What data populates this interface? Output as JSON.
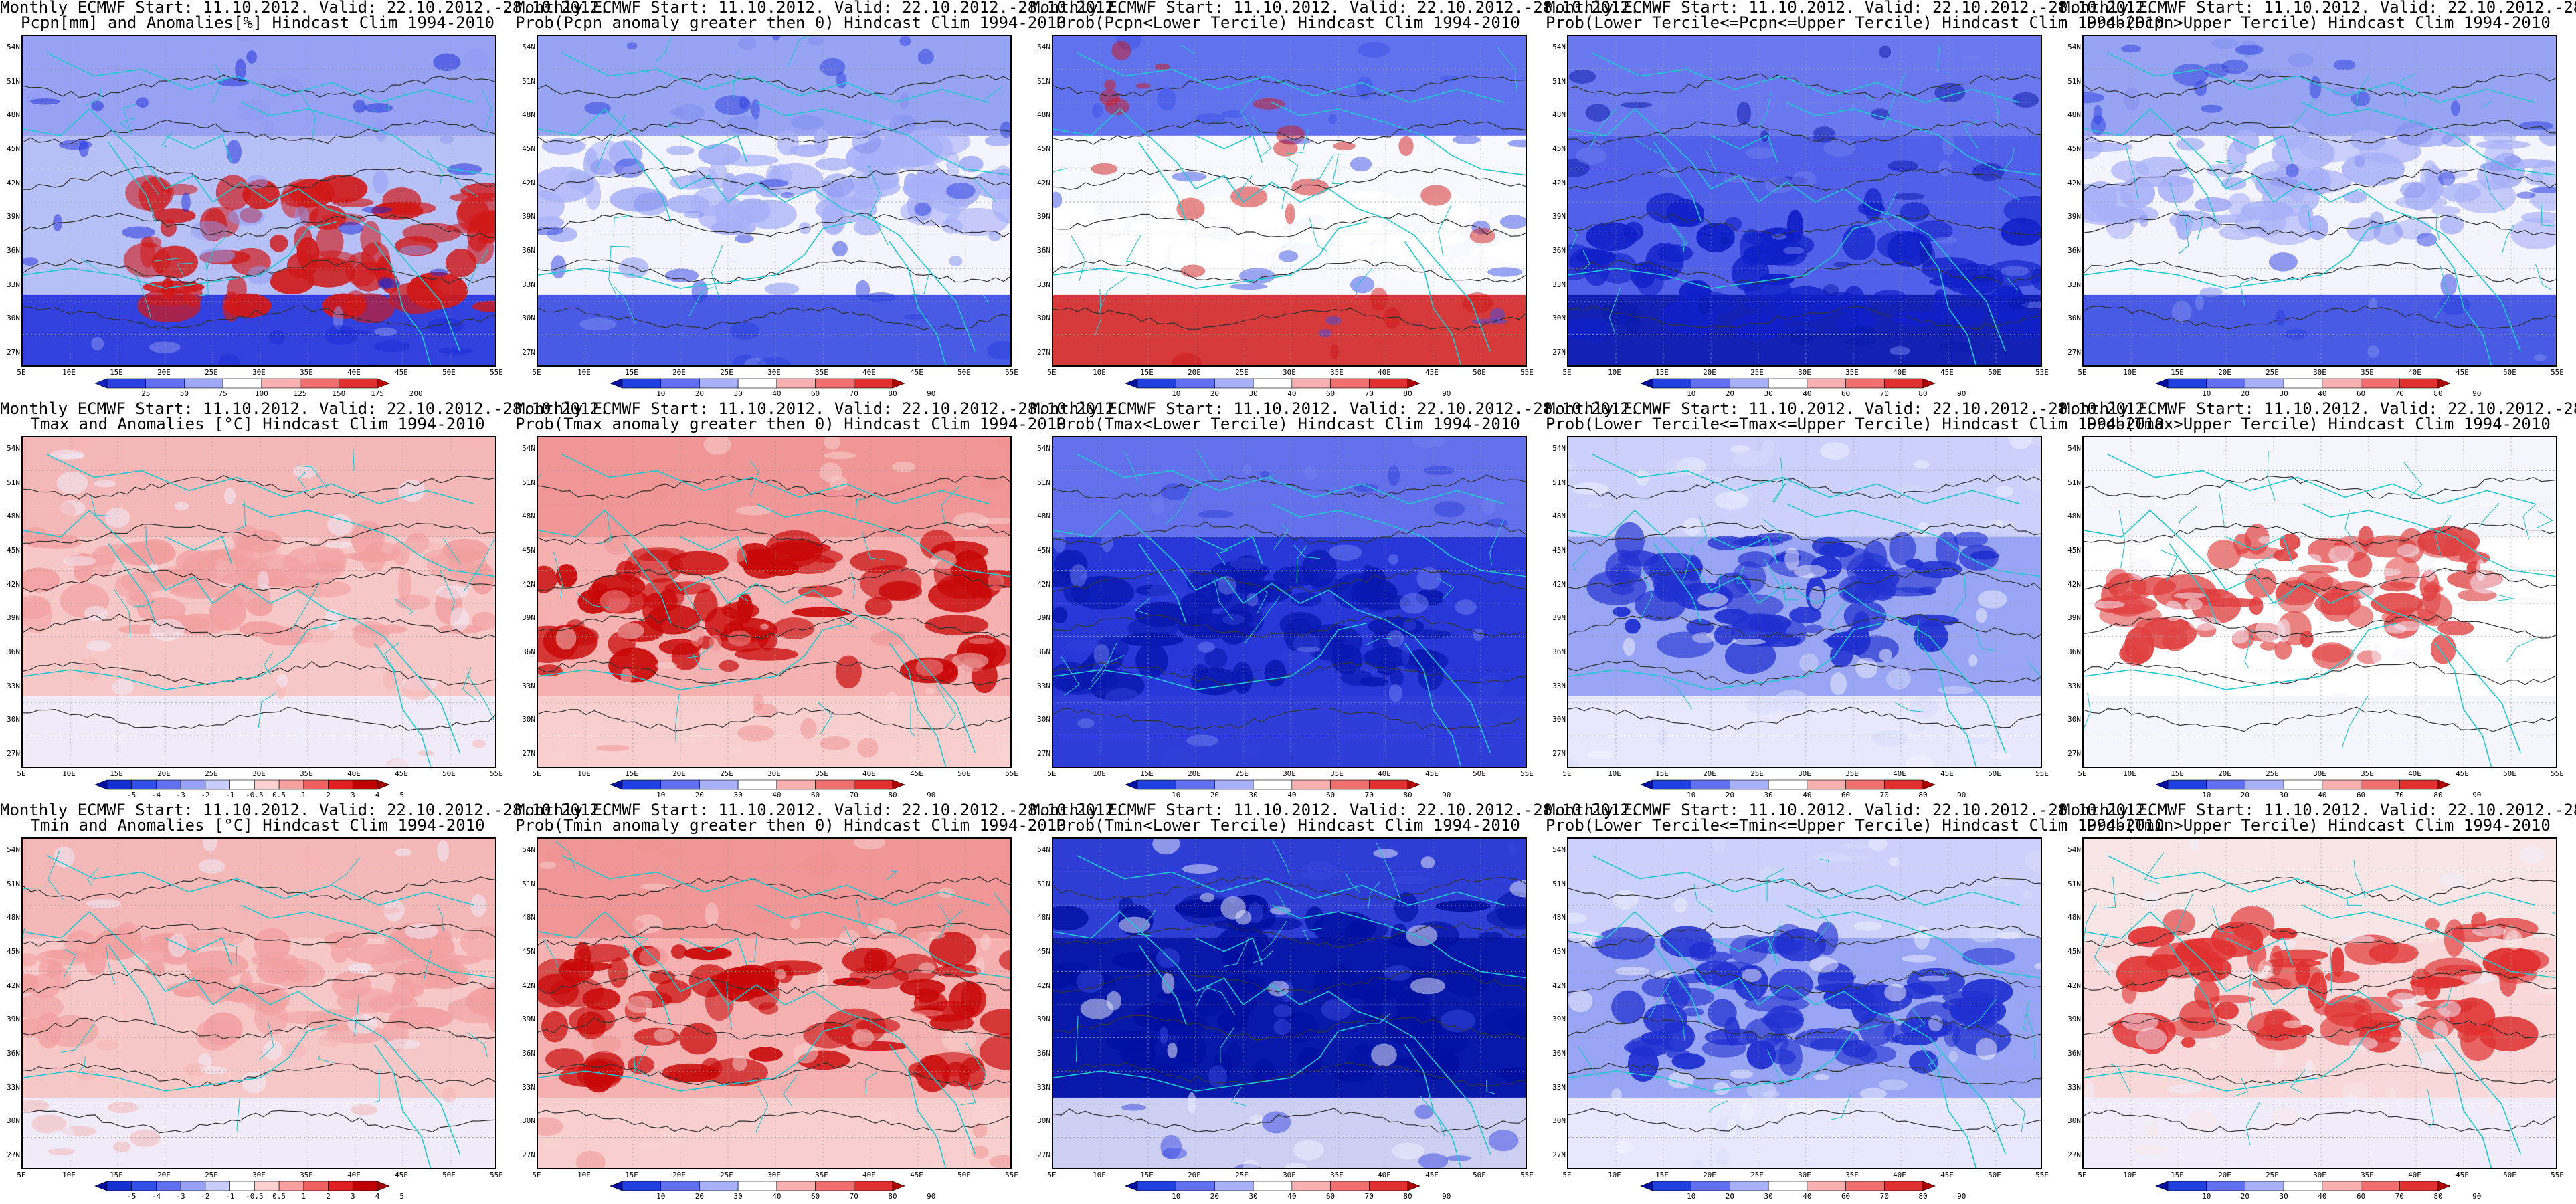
{
  "header_line1": "Monthly ECMWF Start: 11.10.2012. Valid: 22.10.2012.-28.10.2012.",
  "lat_labels": [
    "54N",
    "51N",
    "48N",
    "45N",
    "42N",
    "39N",
    "36N",
    "33N",
    "30N",
    "27N"
  ],
  "lon_labels": [
    "5E",
    "10E",
    "15E",
    "20E",
    "25E",
    "30E",
    "35E",
    "40E",
    "45E",
    "50E",
    "55E"
  ],
  "colorbars": {
    "pcpn": {
      "labels": [
        "25",
        "50",
        "75",
        "100",
        "125",
        "150",
        "175",
        "200"
      ],
      "colors": [
        "#1020c0",
        "#2a40e0",
        "#6070f0",
        "#a0a8f8",
        "#ffffff",
        "#f8b0b0",
        "#f07070",
        "#e03030",
        "#c00000"
      ]
    },
    "temp": {
      "labels": [
        "-5",
        "-4",
        "-3",
        "-2",
        "-1",
        "-0.5",
        "0.5",
        "1",
        "2",
        "3",
        "4",
        "5"
      ],
      "colors": [
        "#0010a0",
        "#1530d0",
        "#3050e8",
        "#6070f0",
        "#98a0f8",
        "#c8ccfb",
        "#ffffff",
        "#fcd0d0",
        "#f8a0a0",
        "#f06060",
        "#e02020",
        "#c00000",
        "#a00000"
      ]
    },
    "prob": {
      "labels": [
        "10",
        "20",
        "30",
        "40",
        "60",
        "70",
        "80",
        "90"
      ],
      "colors": [
        "#0010a0",
        "#2040e0",
        "#6070f0",
        "#a8b0f8",
        "#ffffff",
        "#f8b0b0",
        "#f07070",
        "#e03030",
        "#b00000"
      ]
    }
  },
  "panels": [
    {
      "id": "r1c1",
      "title2": "Pcpn[mm] and Anomalies[%] Hindcast Clim 1994-2010",
      "scheme": "pcpn",
      "cbar": "pcpn",
      "accent": "#d01818"
    },
    {
      "id": "r1c2",
      "title2": "Prob(Pcpn anomaly greater then 0) Hindcast Clim 1994-2010",
      "scheme": "coolmix",
      "cbar": "prob",
      "accent": "#5060e8"
    },
    {
      "id": "r1c3",
      "title2": "Prob(Pcpn<Lower Tercile) Hindcast Clim 1994-2010",
      "scheme": "pcpnlow",
      "cbar": "prob",
      "accent": "#d01818"
    },
    {
      "id": "r1c4",
      "title2": "Prob(Lower Tercile<=Pcpn<=Upper Tercile) Hindcast Clim 1994-2010",
      "scheme": "deepblue",
      "cbar": "prob",
      "accent": "#1830d8"
    },
    {
      "id": "r1c5",
      "title2": "Prob(Pcpn>Upper Tercile) Hindcast Clim 1994-2010",
      "scheme": "coolmix",
      "cbar": "prob",
      "accent": "#3048e0"
    },
    {
      "id": "r2c1",
      "title2": "Tmax and Anomalies [°C] Hindcast Clim 1994-2010",
      "scheme": "paleRed",
      "cbar": "temp",
      "accent": "#f0a0a0"
    },
    {
      "id": "r2c2",
      "title2": "Prob(Tmax anomaly greater then 0) Hindcast Clim 1994-2010",
      "scheme": "red",
      "cbar": "prob",
      "accent": "#d01010"
    },
    {
      "id": "r2c3",
      "title2": "Prob(Tmax<Lower Tercile) Hindcast Clim 1994-2010",
      "scheme": "blue",
      "cbar": "prob",
      "accent": "#1020d0"
    },
    {
      "id": "r2c4",
      "title2": "Prob(Lower Tercile<=Tmax<=Upper Tercile) Hindcast Clim 1994-2010",
      "scheme": "blueMix",
      "cbar": "prob",
      "accent": "#2030c8"
    },
    {
      "id": "r2c5",
      "title2": "Prob(Tmax>Upper Tercile) Hindcast Clim 1994-2010",
      "scheme": "redCenter",
      "cbar": "prob",
      "accent": "#d02020"
    },
    {
      "id": "r3c1",
      "title2": "Tmin and Anomalies [°C] Hindcast Clim 1994-2010",
      "scheme": "paleRed",
      "cbar": "temp",
      "accent": "#f09090"
    },
    {
      "id": "r3c2",
      "title2": "Prob(Tmin anomaly greater then 0) Hindcast Clim 1994-2010",
      "scheme": "red",
      "cbar": "prob",
      "accent": "#c80808"
    },
    {
      "id": "r3c3",
      "title2": "Prob(Tmin<Lower Tercile) Hindcast Clim 1994-2010",
      "scheme": "blueDeep",
      "cbar": "prob",
      "accent": "#0010b0"
    },
    {
      "id": "r3c4",
      "title2": "Prob(Lower Tercile<=Tmin<=Upper Tercile) Hindcast Clim 1994-2010",
      "scheme": "blueMix",
      "cbar": "prob",
      "accent": "#2838d0"
    },
    {
      "id": "r3c5",
      "title2": "Prob(Tmin>Upper Tercile) Hindcast Clim 1994-2010",
      "scheme": "redMix",
      "cbar": "prob",
      "accent": "#d02020"
    }
  ]
}
